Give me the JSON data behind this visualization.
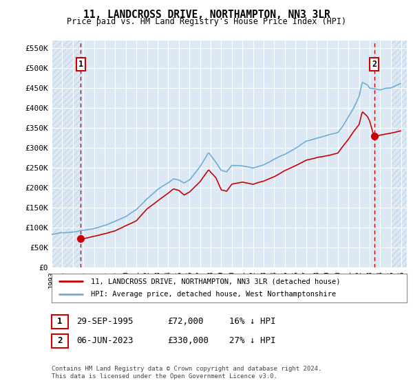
{
  "title": "11, LANDCROSS DRIVE, NORTHAMPTON, NN3 3LR",
  "subtitle": "Price paid vs. HM Land Registry's House Price Index (HPI)",
  "ylim": [
    0,
    570000
  ],
  "yticks": [
    0,
    50000,
    100000,
    150000,
    200000,
    250000,
    300000,
    350000,
    400000,
    450000,
    500000,
    550000
  ],
  "ytick_labels": [
    "£0",
    "£50K",
    "£100K",
    "£150K",
    "£200K",
    "£250K",
    "£300K",
    "£350K",
    "£400K",
    "£450K",
    "£500K",
    "£550K"
  ],
  "xlim_start": 1993.0,
  "xlim_end": 2026.5,
  "hatch_right_start": 2025.0,
  "transaction1_date": 1995.75,
  "transaction1_price": 72000,
  "transaction2_date": 2023.43,
  "transaction2_price": 330000,
  "legend1_label": "11, LANDCROSS DRIVE, NORTHAMPTON, NN3 3LR (detached house)",
  "legend2_label": "HPI: Average price, detached house, West Northamptonshire",
  "note1_date": "29-SEP-1995",
  "note1_price": "£72,000",
  "note1_hpi": "16% ↓ HPI",
  "note2_date": "06-JUN-2023",
  "note2_price": "£330,000",
  "note2_hpi": "27% ↓ HPI",
  "footer": "Contains HM Land Registry data © Crown copyright and database right 2024.\nThis data is licensed under the Open Government Licence v3.0.",
  "hpi_color": "#6baed6",
  "price_color": "#cc0000",
  "bg_color": "#dce9f5",
  "hatch_color": "#c8d8e8",
  "grid_color": "#ffffff",
  "dashed_line_color": "#cc0000",
  "box_edge_color": "#cc0000"
}
